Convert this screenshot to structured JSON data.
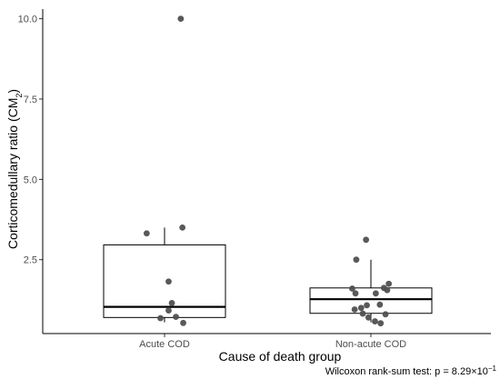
{
  "chart_data": {
    "type": "boxplot",
    "title": "",
    "xlabel": "Cause of death group",
    "ylabel_main": "Corticomedullary ratio (CM",
    "ylabel_sub": "2",
    "ylabel_close": ")",
    "categories": [
      "Acute COD",
      "Non-acute COD"
    ],
    "ylim": [
      0.2,
      10.3
    ],
    "yticks": [
      2.5,
      5.0,
      7.5,
      10.0
    ],
    "ytick_labels": [
      "2.5",
      "5.0",
      "7.5",
      "10.0"
    ],
    "grid": false,
    "boxes": [
      {
        "category": "Acute COD",
        "q1": 0.7,
        "median": 1.03,
        "q3": 2.96,
        "whisker_low": 0.55,
        "whisker_high": 3.5
      },
      {
        "category": "Non-acute COD",
        "q1": 0.83,
        "median": 1.27,
        "q3": 1.62,
        "whisker_low": 0.55,
        "whisker_high": 2.5
      }
    ],
    "points": [
      {
        "category": "Acute COD",
        "jitter": -0.22,
        "y": 3.32
      },
      {
        "category": "Acute COD",
        "jitter": 0.2,
        "y": 10.0
      },
      {
        "category": "Acute COD",
        "jitter": 0.22,
        "y": 3.5
      },
      {
        "category": "Acute COD",
        "jitter": 0.05,
        "y": 1.82
      },
      {
        "category": "Acute COD",
        "jitter": 0.09,
        "y": 1.15
      },
      {
        "category": "Acute COD",
        "jitter": 0.05,
        "y": 0.92
      },
      {
        "category": "Acute COD",
        "jitter": -0.05,
        "y": 0.68
      },
      {
        "category": "Acute COD",
        "jitter": 0.14,
        "y": 0.72
      },
      {
        "category": "Acute COD",
        "jitter": 0.23,
        "y": 0.53
      },
      {
        "category": "Non-acute COD",
        "jitter": -0.06,
        "y": 3.12
      },
      {
        "category": "Non-acute COD",
        "jitter": -0.18,
        "y": 2.5
      },
      {
        "category": "Non-acute COD",
        "jitter": -0.23,
        "y": 1.6
      },
      {
        "category": "Non-acute COD",
        "jitter": -0.19,
        "y": 1.45
      },
      {
        "category": "Non-acute COD",
        "jitter": 0.06,
        "y": 1.45
      },
      {
        "category": "Non-acute COD",
        "jitter": 0.16,
        "y": 1.62
      },
      {
        "category": "Non-acute COD",
        "jitter": 0.22,
        "y": 1.75
      },
      {
        "category": "Non-acute COD",
        "jitter": 0.2,
        "y": 1.55
      },
      {
        "category": "Non-acute COD",
        "jitter": -0.2,
        "y": 0.95
      },
      {
        "category": "Non-acute COD",
        "jitter": -0.12,
        "y": 1.0
      },
      {
        "category": "Non-acute COD",
        "jitter": -0.05,
        "y": 1.08
      },
      {
        "category": "Non-acute COD",
        "jitter": 0.11,
        "y": 1.1
      },
      {
        "category": "Non-acute COD",
        "jitter": -0.1,
        "y": 0.82
      },
      {
        "category": "Non-acute COD",
        "jitter": -0.03,
        "y": 0.7
      },
      {
        "category": "Non-acute COD",
        "jitter": 0.18,
        "y": 0.8
      },
      {
        "category": "Non-acute COD",
        "jitter": 0.05,
        "y": 0.58
      },
      {
        "category": "Non-acute COD",
        "jitter": 0.12,
        "y": 0.52
      }
    ],
    "caption_prefix": "Wilcoxon rank-sum test: p = 8.29×10",
    "caption_exponent": "−1",
    "colors": {
      "point": "#505050",
      "box": "#000000",
      "axis": "#000000"
    }
  }
}
